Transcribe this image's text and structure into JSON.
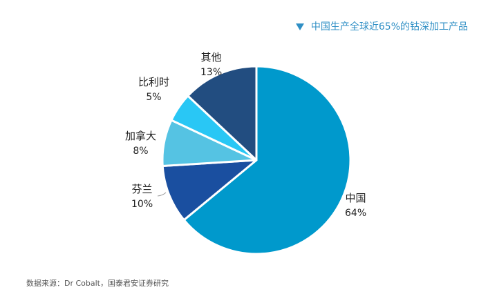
{
  "header": {
    "marker_icon": "triangle-down-icon",
    "text": "中国生产全球近65%的钴深加工产品"
  },
  "chart_data": {
    "type": "pie",
    "title": "",
    "slices": [
      {
        "name": "中国",
        "value": 64,
        "label": "64%",
        "color": "#0099cc"
      },
      {
        "name": "芬兰",
        "value": 10,
        "label": "10%",
        "color": "#1a4fa0"
      },
      {
        "name": "加拿大",
        "value": 8,
        "label": "8%",
        "color": "#55c3e3"
      },
      {
        "name": "比利时",
        "value": 5,
        "label": "5%",
        "color": "#29c7f5"
      },
      {
        "name": "其他",
        "value": 13,
        "label": "13%",
        "color": "#224d80"
      }
    ],
    "start_angle_deg": 0,
    "direction": "clockwise"
  },
  "source": {
    "text": "数据来源：Dr Cobalt，国泰君安证券研究"
  }
}
